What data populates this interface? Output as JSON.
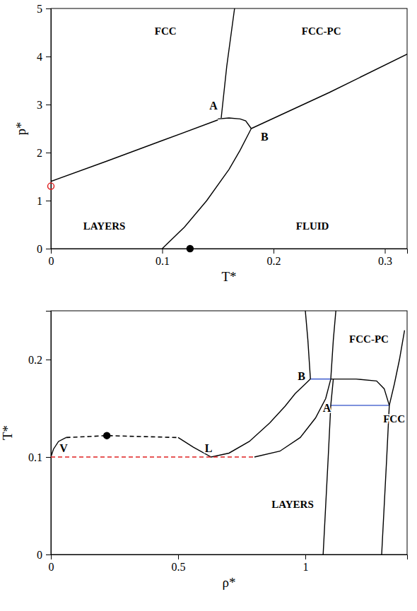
{
  "chart_data": [
    {
      "type": "line",
      "xlabel": "T*",
      "ylabel": "p*",
      "xlim": [
        0,
        0.32
      ],
      "xticks": [
        0,
        0.1,
        0.2,
        0.3
      ],
      "ylim": [
        0,
        5
      ],
      "yticks": [
        0,
        1,
        2,
        3,
        4,
        5
      ],
      "series": [
        {
          "color": "#000000",
          "line_style": "solid",
          "x": [
            0,
            0.05,
            0.1,
            0.15
          ],
          "values": [
            1.4,
            1.82,
            2.25,
            2.68
          ]
        },
        {
          "color": "#000000",
          "line_style": "solid",
          "x": [
            0.153,
            0.158,
            0.165
          ],
          "values": [
            2.72,
            3.8,
            5.0
          ]
        },
        {
          "color": "#000000",
          "line_style": "solid",
          "x": [
            0.15,
            0.16,
            0.17,
            0.175,
            0.18
          ],
          "values": [
            2.7,
            2.72,
            2.7,
            2.66,
            2.5
          ]
        },
        {
          "color": "#000000",
          "line_style": "solid",
          "x": [
            0.18,
            0.25,
            0.32
          ],
          "values": [
            2.5,
            3.25,
            4.05
          ]
        },
        {
          "color": "#000000",
          "line_style": "solid",
          "x": [
            0.1,
            0.12,
            0.14,
            0.16,
            0.17,
            0.18
          ],
          "values": [
            0,
            0.45,
            1.0,
            1.65,
            2.05,
            2.5
          ]
        },
        {
          "type": "scatter",
          "color": "#e02020",
          "marker": "circle-open",
          "x": [
            0
          ],
          "values": [
            1.3
          ]
        },
        {
          "type": "scatter",
          "color": "#000000",
          "marker": "circle",
          "x": [
            0.125
          ],
          "values": [
            0
          ]
        }
      ],
      "annotations": [
        {
          "text": "FCC",
          "x": 0.103,
          "y": 4.5
        },
        {
          "text": "FCC-PC",
          "x": 0.243,
          "y": 4.5
        },
        {
          "text": "LAYERS",
          "x": 0.048,
          "y": 0.45
        },
        {
          "text": "FLUID",
          "x": 0.235,
          "y": 0.45
        },
        {
          "text": "A",
          "x": 0.146,
          "y": 2.95
        },
        {
          "text": "B",
          "x": 0.192,
          "y": 2.3
        }
      ]
    },
    {
      "type": "line",
      "xlabel": "ρ*",
      "ylabel": "T*",
      "xlim": [
        0,
        1.4
      ],
      "xticks": [
        0,
        0.5,
        1
      ],
      "ylim": [
        0,
        0.25
      ],
      "yticks": [
        0,
        0.1,
        0.2
      ],
      "series": [
        {
          "color": "#000000",
          "line_style": "solid",
          "x": [
            0,
            0.01,
            0.03,
            0.06
          ],
          "values": [
            0.1,
            0.108,
            0.116,
            0.12
          ]
        },
        {
          "color": "#000000",
          "line_style": "dashed",
          "x": [
            0.06,
            0.15,
            0.22,
            0.35,
            0.5
          ],
          "values": [
            0.12,
            0.121,
            0.122,
            0.121,
            0.12
          ]
        },
        {
          "color": "#000000",
          "line_style": "solid",
          "x": [
            0.5,
            0.56,
            0.63,
            0.7,
            0.78,
            0.86,
            0.92,
            0.96,
            1.0,
            1.02
          ],
          "values": [
            0.12,
            0.11,
            0.1,
            0.104,
            0.116,
            0.135,
            0.152,
            0.165,
            0.175,
            0.18
          ]
        },
        {
          "color": "#000000",
          "line_style": "solid",
          "x": [
            0.8,
            0.9,
            0.98,
            1.04,
            1.08,
            1.1
          ],
          "values": [
            0.1,
            0.106,
            0.12,
            0.14,
            0.16,
            0.18
          ]
        },
        {
          "color": "#e02020",
          "line_style": "dashed",
          "x": [
            0,
            0.8
          ],
          "values": [
            0.1,
            0.1
          ]
        },
        {
          "color": "#3050c8",
          "line_style": "solid",
          "x": [
            1.02,
            1.1
          ],
          "values": [
            0.18,
            0.18
          ]
        },
        {
          "color": "#3050c8",
          "line_style": "solid",
          "x": [
            1.1,
            1.33
          ],
          "values": [
            0.153,
            0.153
          ]
        },
        {
          "color": "#000000",
          "line_style": "solid",
          "x": [
            1.02,
            1.01,
            1.0
          ],
          "values": [
            0.18,
            0.22,
            0.25
          ]
        },
        {
          "color": "#000000",
          "line_style": "solid",
          "x": [
            1.1,
            1.11,
            1.12
          ],
          "values": [
            0.18,
            0.22,
            0.25
          ]
        },
        {
          "color": "#000000",
          "line_style": "solid",
          "x": [
            1.07,
            1.08,
            1.09,
            1.1,
            1.11
          ],
          "values": [
            0,
            0.05,
            0.1,
            0.153,
            0.18
          ]
        },
        {
          "color": "#000000",
          "line_style": "solid",
          "x": [
            1.1,
            1.2,
            1.28,
            1.31,
            1.33
          ],
          "values": [
            0.18,
            0.18,
            0.178,
            0.17,
            0.153
          ]
        },
        {
          "color": "#000000",
          "line_style": "solid",
          "x": [
            1.3,
            1.31,
            1.32,
            1.33
          ],
          "values": [
            0,
            0.05,
            0.1,
            0.153
          ]
        },
        {
          "color": "#000000",
          "line_style": "solid",
          "x": [
            1.33,
            1.35,
            1.37,
            1.39
          ],
          "values": [
            0.153,
            0.175,
            0.2,
            0.23
          ]
        },
        {
          "type": "scatter",
          "color": "#000000",
          "marker": "circle",
          "x": [
            0.22
          ],
          "values": [
            0.122
          ]
        }
      ],
      "annotations": [
        {
          "text": "V",
          "x": 0.05,
          "y": 0.108
        },
        {
          "text": "L",
          "x": 0.62,
          "y": 0.108
        },
        {
          "text": "B",
          "x": 0.985,
          "y": 0.182
        },
        {
          "text": "A",
          "x": 1.085,
          "y": 0.149
        },
        {
          "text": "LAYERS",
          "x": 0.95,
          "y": 0.05
        },
        {
          "text": "FCC-PC",
          "x": 1.25,
          "y": 0.22
        },
        {
          "text": "FCC",
          "x": 1.39,
          "y": 0.138
        }
      ]
    }
  ]
}
